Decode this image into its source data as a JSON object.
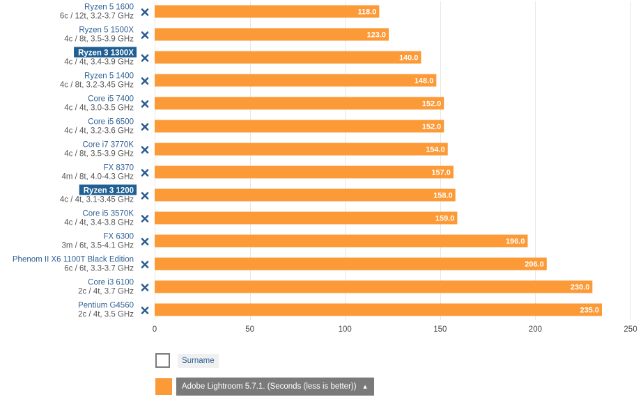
{
  "chart_data": {
    "type": "bar",
    "orientation": "horizontal",
    "categories": [
      {
        "name": "Ryzen 5 1600",
        "spec": "6c / 12t, 3.2-3.7 GHz",
        "highlight": false
      },
      {
        "name": "Ryzen 5 1500X",
        "spec": "4c / 8t, 3.5-3.9 GHz",
        "highlight": false
      },
      {
        "name": "Ryzen 3 1300X",
        "spec": "4c / 4t, 3.4-3.9 GHz",
        "highlight": true
      },
      {
        "name": "Ryzen 5 1400",
        "spec": "4c / 8t, 3.2-3.45 GHz",
        "highlight": false
      },
      {
        "name": "Core i5 7400",
        "spec": "4c / 4t, 3.0-3.5 GHz",
        "highlight": false
      },
      {
        "name": "Core i5 6500",
        "spec": "4c / 4t, 3.2-3.6 GHz",
        "highlight": false
      },
      {
        "name": "Core i7 3770K",
        "spec": "4c / 8t, 3.5-3.9 GHz",
        "highlight": false
      },
      {
        "name": "FX 8370",
        "spec": "4m / 8t, 4.0-4.3 GHz",
        "highlight": false
      },
      {
        "name": "Ryzen 3 1200",
        "spec": "4c / 4t, 3.1-3.45 GHz",
        "highlight": true
      },
      {
        "name": "Core i5 3570K",
        "spec": "4c / 4t, 3.4-3.8 GHz",
        "highlight": false
      },
      {
        "name": "FX 6300",
        "spec": "3m / 6t, 3.5-4.1 GHz",
        "highlight": false
      },
      {
        "name": "Phenom II X6 1100T Black Edition",
        "spec": "6c / 6t, 3.3-3.7 GHz",
        "highlight": false
      },
      {
        "name": "Core i3 6100",
        "spec": "2c / 4t, 3.7 GHz",
        "highlight": false
      },
      {
        "name": "Pentium G4560",
        "spec": "2c / 4t, 3.5 GHz",
        "highlight": false
      }
    ],
    "values": [
      118.0,
      123.0,
      140.0,
      148.0,
      152.0,
      152.0,
      154.0,
      157.0,
      158.0,
      159.0,
      196.0,
      206.0,
      230.0,
      235.0
    ],
    "value_labels": [
      "118.0",
      "123.0",
      "140.0",
      "148.0",
      "152.0",
      "152.0",
      "154.0",
      "157.0",
      "158.0",
      "159.0",
      "196.0",
      "206.0",
      "230.0",
      "235.0"
    ],
    "xlim": [
      0,
      250
    ],
    "xticks": [
      0,
      50,
      100,
      150,
      200,
      250
    ],
    "grid": true,
    "bar_color": "#fb9a37",
    "highlight_color": "#1f5f93",
    "remove_icon": "close-x-icon"
  },
  "legend": {
    "placement": "bottom-left",
    "items": [
      {
        "label": "Surname",
        "color": "#ffffff"
      },
      {
        "label": "Adobe Lightroom 5.7.1. (Seconds (less is better))",
        "color": "#fb9a37",
        "caret": "▲"
      }
    ]
  }
}
